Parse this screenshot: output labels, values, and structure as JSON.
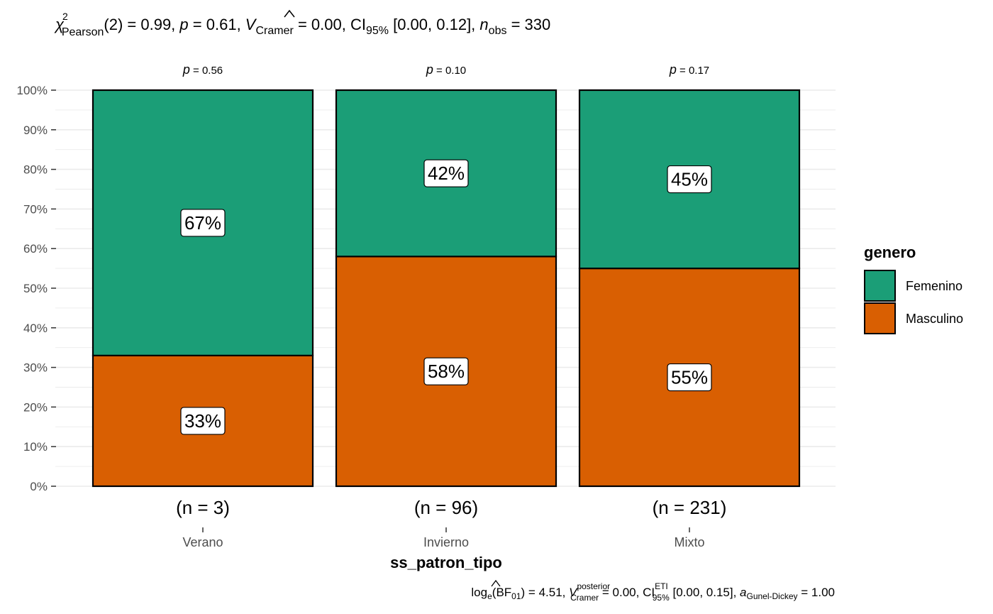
{
  "chart_data": {
    "type": "bar",
    "stacked": true,
    "percent": true,
    "subtitle": {
      "chi_symbol": "χ",
      "chi_sup": "2",
      "chi_sub": "Pearson",
      "df": "(2) = 0.99, ",
      "p_label": "p",
      "p_value": " = 0.61, ",
      "v_label": "V",
      "v_sub": "Cramer",
      "v_value": " = 0.00, CI",
      "ci_sub": "95%",
      "ci_value": " [0.00, 0.12], ",
      "n_label": "n",
      "n_sub": "obs",
      "n_value": " = 330"
    },
    "caption": {
      "log_label": "log",
      "log_sub": "e",
      "bf_open": "(BF",
      "bf_sub": "01",
      "bf_close": ") = 4.51, ",
      "v_label": "V",
      "v_sup": "posterior",
      "v_sub": "Cramer",
      "v_value": " = 0.00, CI",
      "ci_sup": "ETI",
      "ci_sub": "95%",
      "ci_value": " [0.00, 0.15], ",
      "a_label": "a",
      "a_sub": "Gunel-Dickey",
      "a_value": " = 1.00"
    },
    "xlabel": "ss_patron_tipo",
    "ylabel": "",
    "ylim": [
      0,
      100
    ],
    "y_ticks": [
      "0%",
      "10%",
      "20%",
      "30%",
      "40%",
      "50%",
      "60%",
      "70%",
      "80%",
      "90%",
      "100%"
    ],
    "categories": [
      "Verano",
      "Invierno",
      "Mixto"
    ],
    "counts": [
      "(n = 3)",
      "(n = 96)",
      "(n = 231)"
    ],
    "p_values": [
      {
        "label": "p",
        "value": " = 0.56"
      },
      {
        "label": "p",
        "value": " = 0.10"
      },
      {
        "label": "p",
        "value": " = 0.17"
      }
    ],
    "series": [
      {
        "name": "Masculino",
        "color": "#D95F02",
        "values": [
          33,
          58,
          55
        ],
        "labels": [
          "33%",
          "58%",
          "55%"
        ]
      },
      {
        "name": "Femenino",
        "color": "#1B9E77",
        "values": [
          67,
          42,
          45
        ],
        "labels": [
          "67%",
          "42%",
          "45%"
        ]
      }
    ],
    "legend": {
      "title": "genero",
      "placement": "right",
      "entries": [
        {
          "name": "Femenino",
          "color": "#1B9E77"
        },
        {
          "name": "Masculino",
          "color": "#D95F02"
        }
      ]
    },
    "grid": true
  }
}
